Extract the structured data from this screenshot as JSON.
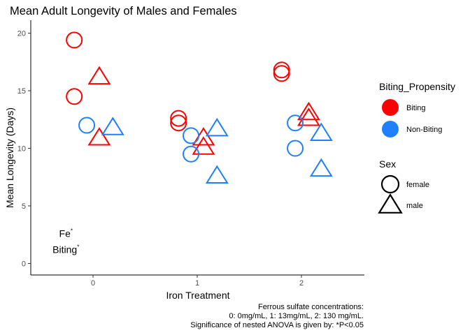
{
  "chart_data": {
    "type": "scatter",
    "title": "Mean Adult Longevity of Males and Females",
    "xlabel": "Iron Treatment",
    "ylabel": "Mean Longevity (Days)",
    "x_categories": [
      "0",
      "1",
      "2"
    ],
    "ylim": [
      -1,
      21
    ],
    "yticks": [
      "0",
      "5",
      "10",
      "15",
      "20"
    ],
    "grid": false,
    "colors": {
      "Biting": "#ff0000",
      "Non-Biting": "#1f7fff"
    },
    "points": [
      {
        "x": -0.18,
        "y": 19.4,
        "biting": "Biting",
        "sex": "female"
      },
      {
        "x": -0.18,
        "y": 14.5,
        "biting": "Biting",
        "sex": "female"
      },
      {
        "x": 0.06,
        "y": 16.2,
        "biting": "Biting",
        "sex": "male"
      },
      {
        "x": 0.06,
        "y": 10.9,
        "biting": "Biting",
        "sex": "male"
      },
      {
        "x": -0.06,
        "y": 12.0,
        "biting": "Non-Biting",
        "sex": "female"
      },
      {
        "x": 0.19,
        "y": 11.8,
        "biting": "Non-Biting",
        "sex": "male"
      },
      {
        "x": 0.82,
        "y": 12.6,
        "biting": "Biting",
        "sex": "female"
      },
      {
        "x": 0.82,
        "y": 12.2,
        "biting": "Biting",
        "sex": "female"
      },
      {
        "x": 1.06,
        "y": 10.9,
        "biting": "Biting",
        "sex": "male"
      },
      {
        "x": 1.06,
        "y": 10.1,
        "biting": "Biting",
        "sex": "male"
      },
      {
        "x": 0.94,
        "y": 11.1,
        "biting": "Non-Biting",
        "sex": "female"
      },
      {
        "x": 0.94,
        "y": 9.5,
        "biting": "Non-Biting",
        "sex": "female"
      },
      {
        "x": 1.19,
        "y": 11.7,
        "biting": "Non-Biting",
        "sex": "male"
      },
      {
        "x": 1.19,
        "y": 7.6,
        "biting": "Non-Biting",
        "sex": "male"
      },
      {
        "x": 1.81,
        "y": 16.8,
        "biting": "Biting",
        "sex": "female"
      },
      {
        "x": 1.81,
        "y": 16.5,
        "biting": "Biting",
        "sex": "female"
      },
      {
        "x": 2.07,
        "y": 13.1,
        "biting": "Biting",
        "sex": "male"
      },
      {
        "x": 2.07,
        "y": 12.6,
        "biting": "Biting",
        "sex": "male"
      },
      {
        "x": 1.94,
        "y": 12.2,
        "biting": "Non-Biting",
        "sex": "female"
      },
      {
        "x": 1.94,
        "y": 10.0,
        "biting": "Non-Biting",
        "sex": "female"
      },
      {
        "x": 2.19,
        "y": 11.3,
        "biting": "Non-Biting",
        "sex": "male"
      },
      {
        "x": 2.19,
        "y": 8.2,
        "biting": "Non-Biting",
        "sex": "male"
      }
    ],
    "annotations": [
      {
        "text": "Fe",
        "sup": "*",
        "x": -0.26,
        "y": 2.6
      },
      {
        "text": "Biting",
        "sup": "*",
        "x": -0.26,
        "y": 1.2
      }
    ],
    "legend": {
      "placement": "right",
      "color_title": "Biting_Propensity",
      "color_items": [
        "Biting",
        "Non-Biting"
      ],
      "shape_title": "Sex",
      "shape_items": [
        "female",
        "male"
      ]
    },
    "caption": [
      "Ferrous sulfate concentrations:",
      "0: 0mg/mL, 1: 13mg/mL, 2: 130 mg/mL.",
      "Significance of nested ANOVA is given by: *P<0.05"
    ]
  }
}
